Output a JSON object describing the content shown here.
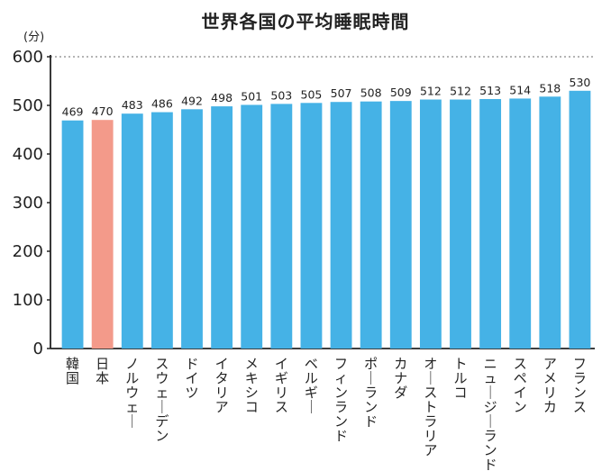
{
  "chart_data": {
    "type": "bar",
    "title": "世界各国の平均睡眠時間",
    "ylabel": "(分)",
    "xlabel": "",
    "ylim": [
      0,
      600
    ],
    "yticks": [
      0,
      100,
      200,
      300,
      400,
      500,
      600
    ],
    "grid": "dotted horizontal at top",
    "categories": [
      "韓国",
      "日本",
      "ノルウェー",
      "スウェーデン",
      "ドイツ",
      "イタリア",
      "メキシコ",
      "イギリス",
      "ベルギー",
      "フィンランド",
      "ポーランド",
      "カナダ",
      "オーストラリア",
      "トルコ",
      "ニュージーランド",
      "スペイン",
      "アメリカ",
      "フランス"
    ],
    "values": [
      469,
      470,
      483,
      486,
      492,
      498,
      501,
      503,
      505,
      507,
      508,
      509,
      512,
      512,
      513,
      514,
      518,
      530
    ],
    "bar_color": "#45b2e6",
    "highlight_color": "#f39a8a",
    "highlight_category": "日本"
  }
}
